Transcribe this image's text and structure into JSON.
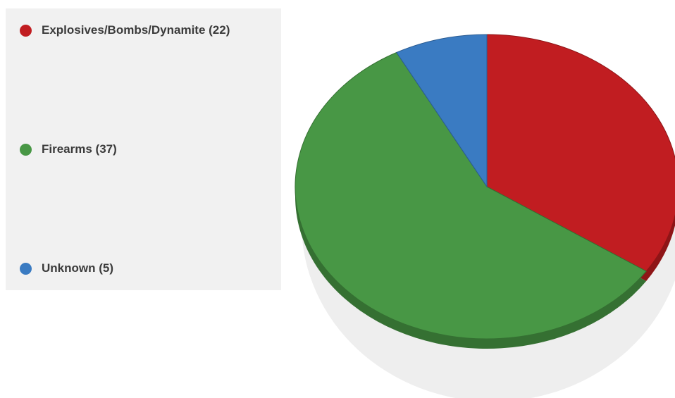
{
  "chart_data": {
    "type": "pie",
    "title": "",
    "legend_position": "left",
    "slices": [
      {
        "label": "Explosives/Bombs/Dynamite (22)",
        "value": 22,
        "color": "#c11d21",
        "side_color": "#8e1517"
      },
      {
        "label": "Firearms (37)",
        "value": 37,
        "color": "#489745",
        "side_color": "#357032"
      },
      {
        "label": "Unknown (5)",
        "value": 5,
        "color": "#3a7bc2",
        "side_color": "#2b5c92"
      }
    ]
  }
}
